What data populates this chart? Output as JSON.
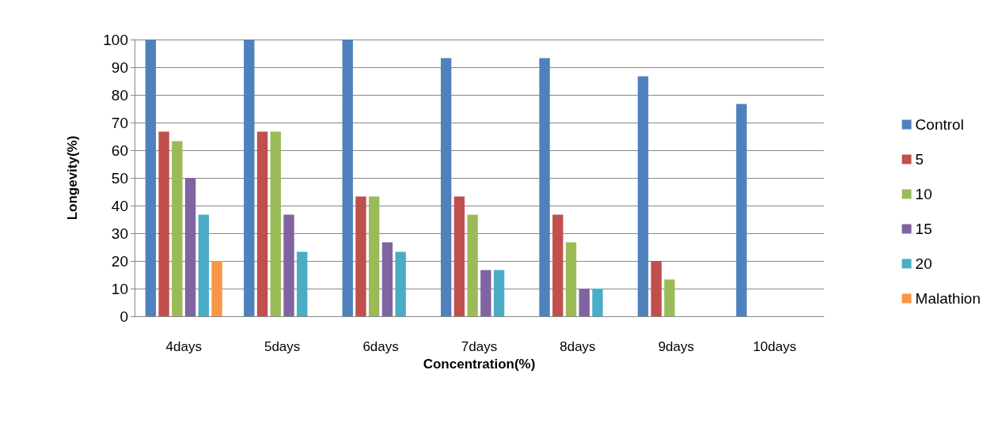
{
  "chart_data": {
    "type": "bar",
    "xlabel": "Concentration(%)",
    "ylabel": "Longevity(%)",
    "categories": [
      "4days",
      "5days",
      "6days",
      "7days",
      "8days",
      "9days",
      "10days"
    ],
    "series": [
      {
        "name": "Control",
        "color": "#4f81bd",
        "values": [
          100,
          100,
          100,
          93.3,
          93.3,
          86.7,
          76.7
        ]
      },
      {
        "name": "5",
        "color": "#c0504d",
        "values": [
          66.7,
          66.7,
          43.3,
          43.3,
          36.7,
          20,
          0
        ]
      },
      {
        "name": "10",
        "color": "#9bbb59",
        "values": [
          63.3,
          66.7,
          43.3,
          36.7,
          26.7,
          13.3,
          0
        ]
      },
      {
        "name": "15",
        "color": "#8064a2",
        "values": [
          50,
          36.7,
          26.7,
          16.7,
          10,
          0,
          0
        ]
      },
      {
        "name": "20",
        "color": "#4bacc6",
        "values": [
          36.7,
          23.3,
          23.3,
          16.7,
          10,
          0,
          0
        ]
      },
      {
        "name": "Malathion",
        "color": "#f79646",
        "values": [
          20,
          0,
          0,
          0,
          0,
          0,
          0
        ]
      }
    ],
    "ylim": [
      0,
      100
    ],
    "yticks": [
      0,
      10,
      20,
      30,
      40,
      50,
      60,
      70,
      80,
      90,
      100
    ],
    "grid": "y",
    "legend": "right"
  }
}
